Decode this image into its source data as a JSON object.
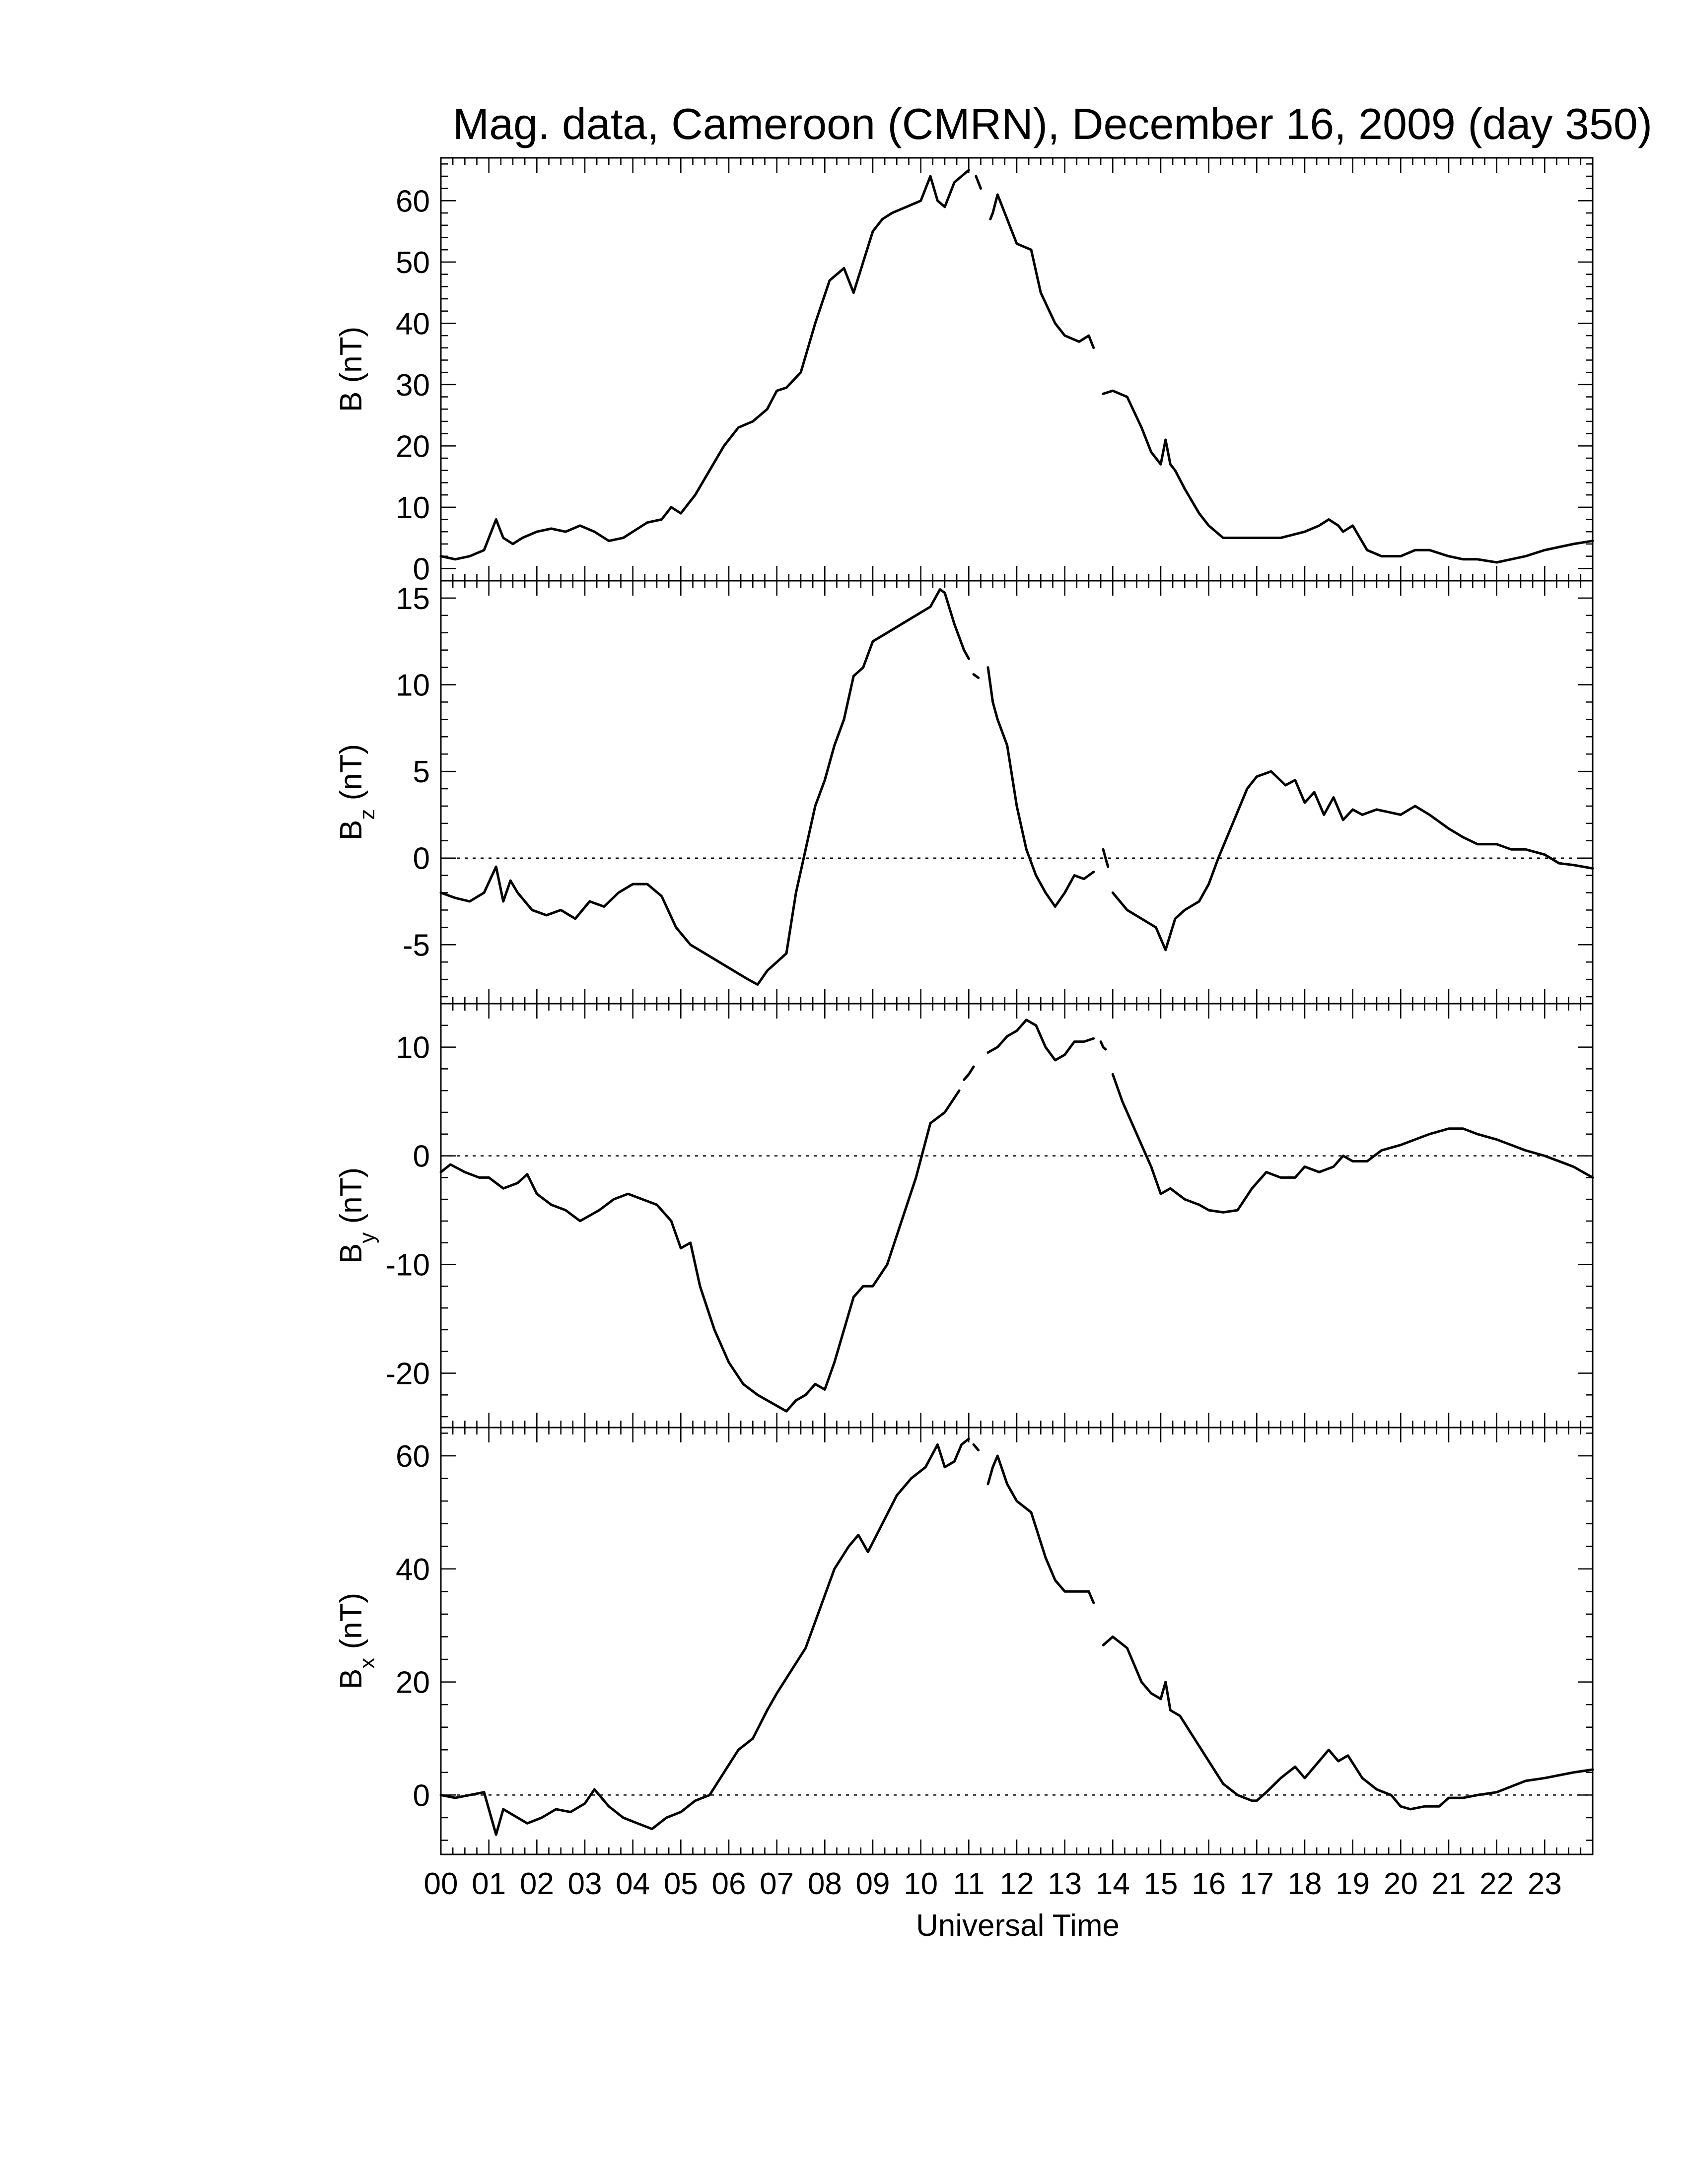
{
  "chart_data": {
    "type": "line",
    "title": "Mag. data, Cameroon (CMRN), December 16, 2009 (day 350)",
    "xlabel": "Universal Time",
    "x_unit": "hours UT",
    "xlim": [
      0,
      24
    ],
    "x_tick_labels": [
      "00",
      "01",
      "02",
      "03",
      "04",
      "05",
      "06",
      "07",
      "08",
      "09",
      "10",
      "11",
      "12",
      "13",
      "14",
      "15",
      "16",
      "17",
      "18",
      "19",
      "20",
      "21",
      "22",
      "23"
    ],
    "grid": false,
    "panels": [
      {
        "id": "B",
        "ylabel_main": "B",
        "ylabel_sub": "",
        "ylabel_unit": "(nT)",
        "ylim": [
          -2,
          67
        ],
        "yticks": [
          0,
          10,
          20,
          30,
          40,
          50,
          60
        ],
        "zero_line": false,
        "series": [
          {
            "x": [
              0.0,
              0.3,
              0.6,
              0.9,
              1.15,
              1.3,
              1.5,
              1.7,
              2.0,
              2.3,
              2.6,
              2.9,
              3.2,
              3.5,
              3.8,
              4.0,
              4.3,
              4.6,
              4.8,
              5.0,
              5.3,
              5.6,
              5.9,
              6.2,
              6.5,
              6.8,
              7.0,
              7.2,
              7.5,
              7.8,
              8.1,
              8.4,
              8.6,
              8.8,
              9.0,
              9.2,
              9.4,
              9.7,
              10.0,
              10.2,
              10.35,
              10.5,
              10.7,
              10.85,
              11.0
            ],
            "y": [
              2,
              1.5,
              2,
              3,
              8,
              5,
              4,
              5,
              6,
              6.5,
              6,
              7,
              6,
              4.5,
              5,
              6,
              7.5,
              8,
              10,
              9,
              12,
              16,
              20,
              23,
              24,
              26,
              29,
              29.5,
              32,
              40,
              47,
              49,
              45,
              50,
              55,
              57,
              58,
              59,
              60,
              64,
              60,
              59,
              63,
              64,
              65
            ]
          },
          {
            "x": [
              11.15,
              11.2,
              11.25
            ],
            "y": [
              64,
              63,
              62
            ]
          },
          {
            "x": [
              11.45,
              11.5,
              11.6,
              11.8,
              12.0,
              12.3,
              12.5,
              12.8,
              13.0,
              13.3,
              13.5,
              13.6
            ],
            "y": [
              57,
              58,
              61,
              57,
              53,
              52,
              45,
              40,
              38,
              37,
              38,
              36
            ]
          },
          {
            "x": [
              13.8,
              14.0,
              14.3,
              14.6,
              14.8,
              15.0,
              15.1,
              15.2,
              15.3,
              15.5,
              15.8,
              16.0,
              16.3,
              16.6,
              17.0,
              17.5,
              18.0,
              18.3,
              18.5,
              18.7,
              18.8,
              19.0,
              19.3,
              19.6,
              20.0,
              20.3,
              20.6,
              21.0,
              21.3,
              21.6,
              22.0,
              22.3,
              22.6,
              23.0,
              23.3,
              23.6,
              24.0
            ],
            "y": [
              28.5,
              29,
              28,
              23,
              19,
              17,
              21,
              17,
              16,
              13,
              9,
              7,
              5,
              5,
              5,
              5,
              6,
              7,
              8,
              7,
              6,
              7,
              3,
              2,
              2,
              3,
              3,
              2,
              1.5,
              1.5,
              1,
              1.5,
              2,
              3,
              3.5,
              4,
              4.5
            ]
          }
        ]
      },
      {
        "id": "Bz",
        "ylabel_main": "B",
        "ylabel_sub": "z",
        "ylabel_unit": "(nT)",
        "ylim": [
          -8.4,
          16.0
        ],
        "yticks": [
          -5,
          0,
          5,
          10,
          15
        ],
        "zero_line": true,
        "series": [
          {
            "x": [
              0.0,
              0.3,
              0.6,
              0.9,
              1.15,
              1.3,
              1.45,
              1.6,
              1.9,
              2.2,
              2.5,
              2.8,
              3.1,
              3.4,
              3.7,
              4.0,
              4.3,
              4.6,
              4.9,
              5.2,
              5.5,
              5.8,
              6.1,
              6.4,
              6.6,
              6.8,
              7.0,
              7.2,
              7.4,
              7.6,
              7.8,
              8.0,
              8.2,
              8.4,
              8.6,
              8.8,
              9.0,
              9.3,
              9.6,
              9.9,
              10.2,
              10.4,
              10.5,
              10.7,
              10.9,
              11.0
            ],
            "y": [
              -2,
              -2.3,
              -2.5,
              -2,
              -0.5,
              -2.5,
              -1.3,
              -2,
              -3,
              -3.3,
              -3,
              -3.5,
              -2.5,
              -2.8,
              -2,
              -1.5,
              -1.5,
              -2.2,
              -4,
              -5,
              -5.5,
              -6,
              -6.5,
              -7,
              -7.3,
              -6.5,
              -6,
              -5.5,
              -2,
              0.5,
              3,
              4.5,
              6.5,
              8,
              10.5,
              11,
              12.5,
              13,
              13.5,
              14,
              14.5,
              15.5,
              15.3,
              13.5,
              12,
              11.5
            ]
          },
          {
            "x": [
              11.1,
              11.15,
              11.2
            ],
            "y": [
              10.6,
              10.5,
              10.4
            ]
          },
          {
            "x": [
              11.4,
              11.5,
              11.6,
              11.8,
              12.0,
              12.2,
              12.4,
              12.6,
              12.8,
              13.0,
              13.2,
              13.4,
              13.6
            ],
            "y": [
              11,
              9,
              8,
              6.5,
              3,
              0.5,
              -1,
              -2,
              -2.8,
              -2,
              -1,
              -1.2,
              -0.8
            ]
          },
          {
            "x": [
              13.8,
              13.85,
              13.9
            ],
            "y": [
              0.5,
              0,
              -0.5
            ]
          },
          {
            "x": [
              14.0,
              14.3,
              14.6,
              14.9,
              15.1,
              15.3,
              15.5,
              15.8,
              16.0,
              16.2,
              16.5,
              16.8,
              17.0,
              17.3,
              17.6,
              17.8,
              18.0,
              18.2,
              18.4,
              18.6,
              18.8,
              19.0,
              19.2,
              19.5,
              20.0,
              20.3,
              20.6,
              21.0,
              21.3,
              21.6,
              22.0,
              22.3,
              22.6,
              23.0,
              23.3,
              23.6,
              24.0
            ],
            "y": [
              -2,
              -3,
              -3.5,
              -4,
              -5.3,
              -3.5,
              -3,
              -2.5,
              -1.5,
              0,
              2,
              4,
              4.7,
              5,
              4.2,
              4.5,
              3.2,
              3.8,
              2.5,
              3.5,
              2.2,
              2.8,
              2.5,
              2.8,
              2.5,
              3,
              2.5,
              1.7,
              1.2,
              0.8,
              0.8,
              0.5,
              0.5,
              0.2,
              -0.3,
              -0.4,
              -0.6
            ]
          }
        ]
      },
      {
        "id": "By",
        "ylabel_main": "B",
        "ylabel_sub": "y",
        "ylabel_unit": "(nT)",
        "ylim": [
          -25,
          14
        ],
        "yticks": [
          -20,
          -10,
          0,
          10
        ],
        "zero_line": true,
        "series": [
          {
            "x": [
              0.0,
              0.2,
              0.5,
              0.8,
              1.0,
              1.3,
              1.6,
              1.8,
              2.0,
              2.3,
              2.6,
              2.9,
              3.1,
              3.3,
              3.6,
              3.9,
              4.2,
              4.5,
              4.8,
              5.0,
              5.2,
              5.4,
              5.7,
              6.0,
              6.3,
              6.6,
              7.0,
              7.2,
              7.4,
              7.6,
              7.8,
              8.0,
              8.2,
              8.4,
              8.6,
              8.8,
              9.0,
              9.3,
              9.6,
              9.9,
              10.2,
              10.5,
              10.8
            ],
            "y": [
              -1.5,
              -0.8,
              -1.5,
              -2,
              -2,
              -3,
              -2.5,
              -1.7,
              -3.5,
              -4.5,
              -5,
              -6,
              -5.5,
              -5,
              -4,
              -3.5,
              -4,
              -4.5,
              -6,
              -8.5,
              -8,
              -12,
              -16,
              -19,
              -21,
              -22,
              -23,
              -23.5,
              -22.5,
              -22,
              -21,
              -21.5,
              -19,
              -16,
              -13,
              -12,
              -12,
              -10,
              -6,
              -2,
              3,
              4,
              6
            ]
          },
          {
            "x": [
              10.9,
              11.0,
              11.1
            ],
            "y": [
              7,
              7.5,
              8.2
            ]
          },
          {
            "x": [
              11.4,
              11.6,
              11.8,
              12.0,
              12.2,
              12.4,
              12.6,
              12.8,
              13.0,
              13.2,
              13.4,
              13.6
            ],
            "y": [
              9.5,
              10,
              11,
              11.5,
              12.5,
              12,
              10,
              8.8,
              9.3,
              10.5,
              10.5,
              10.8
            ]
          },
          {
            "x": [
              13.75,
              13.8,
              13.85
            ],
            "y": [
              10.5,
              10,
              9.8
            ]
          },
          {
            "x": [
              14.0,
              14.2,
              14.5,
              14.8,
              15.0,
              15.2,
              15.5,
              15.8,
              16.0,
              16.3,
              16.6,
              16.9,
              17.2,
              17.5,
              17.8,
              18.0,
              18.3,
              18.6,
              18.8,
              19.0,
              19.3,
              19.6,
              20.0,
              20.3,
              20.6,
              21.0,
              21.3,
              21.6,
              22.0,
              22.3,
              22.6,
              23.0,
              23.3,
              23.6,
              24.0
            ],
            "y": [
              7.5,
              5,
              2,
              -1,
              -3.5,
              -3,
              -4,
              -4.5,
              -5,
              -5.2,
              -5,
              -3,
              -1.5,
              -2,
              -2,
              -1,
              -1.5,
              -1,
              0,
              -0.5,
              -0.5,
              0.5,
              1,
              1.5,
              2,
              2.5,
              2.5,
              2,
              1.5,
              1,
              0.5,
              0,
              -0.5,
              -1,
              -2
            ]
          }
        ]
      },
      {
        "id": "Bx",
        "ylabel_main": "B",
        "ylabel_sub": "x",
        "ylabel_unit": "(nT)",
        "ylim": [
          -10.5,
          65
        ],
        "yticks": [
          0,
          20,
          40,
          60
        ],
        "zero_line": true,
        "series": [
          {
            "x": [
              0.0,
              0.3,
              0.6,
              0.9,
              1.15,
              1.3,
              1.5,
              1.8,
              2.1,
              2.4,
              2.7,
              3.0,
              3.2,
              3.5,
              3.8,
              4.1,
              4.4,
              4.7,
              5.0,
              5.3,
              5.6,
              5.9,
              6.2,
              6.5,
              6.8,
              7.0,
              7.3,
              7.6,
              7.9,
              8.2,
              8.5,
              8.7,
              8.9,
              9.2,
              9.5,
              9.8,
              10.1,
              10.35,
              10.5,
              10.7,
              10.85,
              11.0
            ],
            "y": [
              0,
              -0.5,
              0,
              0.5,
              -7,
              -2.5,
              -3.5,
              -5,
              -4,
              -2.5,
              -3,
              -1.5,
              1,
              -2,
              -4,
              -5,
              -6,
              -4,
              -3,
              -1,
              0,
              4,
              8,
              10,
              15,
              18,
              22,
              26,
              33,
              40,
              44,
              46,
              43,
              48,
              53,
              56,
              58,
              62,
              58,
              59,
              62,
              63
            ]
          },
          {
            "x": [
              11.1,
              11.15,
              11.2
            ],
            "y": [
              62,
              61.5,
              61
            ]
          },
          {
            "x": [
              11.4,
              11.5,
              11.6,
              11.8,
              12.0,
              12.3,
              12.6,
              12.8,
              13.0,
              13.3,
              13.5,
              13.6
            ],
            "y": [
              55,
              58,
              60,
              55,
              52,
              50,
              42,
              38,
              36,
              36,
              36,
              34
            ]
          },
          {
            "x": [
              13.8,
              14.0,
              14.3,
              14.6,
              14.8,
              15.0,
              15.1,
              15.2,
              15.4,
              15.7,
              16.0,
              16.3,
              16.6,
              16.9,
              17.0,
              17.2,
              17.5,
              17.8,
              18.0,
              18.3,
              18.5,
              18.7,
              18.9,
              19.2,
              19.5,
              19.8,
              20.0,
              20.2,
              20.5,
              20.8,
              21.0,
              21.3,
              21.6,
              22.0,
              22.3,
              22.6,
              23.0,
              23.3,
              23.6,
              24.0
            ],
            "y": [
              26.5,
              28,
              26,
              20,
              18,
              17,
              20,
              15,
              14,
              10,
              6,
              2,
              0,
              -1,
              -1,
              0.5,
              3,
              5,
              3,
              6,
              8,
              6,
              7,
              3,
              1,
              0,
              -2,
              -2.5,
              -2,
              -2,
              -0.5,
              -0.5,
              0,
              0.5,
              1.5,
              2.5,
              3,
              3.5,
              4,
              4.5
            ]
          }
        ]
      }
    ]
  }
}
